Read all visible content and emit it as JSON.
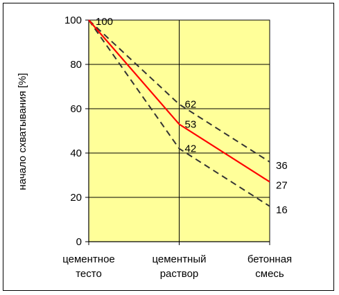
{
  "chart_data": {
    "type": "line",
    "title": "",
    "xlabel": "",
    "ylabel": "начало схватывания [%]",
    "ylim": [
      0,
      100
    ],
    "yticks": [
      "0",
      "20",
      "40",
      "60",
      "80",
      "100"
    ],
    "categories": [
      [
        "цементное",
        "тесто"
      ],
      [
        "цементный",
        "раствор"
      ],
      [
        "бетонная",
        "смесь"
      ]
    ],
    "grid": true,
    "background_color": "#FFFF99",
    "series": [
      {
        "values": [
          100,
          62,
          36
        ],
        "color": "#333333",
        "style": "dashed",
        "labels": [
          "",
          "62",
          "36"
        ]
      },
      {
        "values": [
          100,
          53,
          27
        ],
        "color": "#FF0000",
        "style": "solid",
        "labels": [
          "100",
          "53",
          "27"
        ]
      },
      {
        "values": [
          100,
          42,
          16
        ],
        "color": "#333333",
        "style": "dashed",
        "labels": [
          "",
          "42",
          "16"
        ]
      }
    ]
  }
}
